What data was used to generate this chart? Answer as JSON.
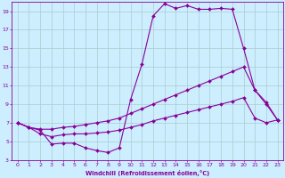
{
  "xlabel": "Windchill (Refroidissement éolien,°C)",
  "background_color": "#cceeff",
  "grid_color": "#aacccc",
  "line_color": "#880099",
  "xlim": [
    -0.5,
    23.5
  ],
  "ylim": [
    3,
    20
  ],
  "xticks": [
    0,
    1,
    2,
    3,
    4,
    5,
    6,
    7,
    8,
    9,
    10,
    11,
    12,
    13,
    14,
    15,
    16,
    17,
    18,
    19,
    20,
    21,
    22,
    23
  ],
  "yticks": [
    3,
    5,
    7,
    9,
    11,
    13,
    15,
    17,
    19
  ],
  "line1_x": [
    0,
    1,
    2,
    3,
    4,
    5,
    6,
    7,
    8,
    9,
    10,
    11,
    12,
    13,
    14,
    15,
    16,
    17,
    18,
    19,
    20,
    21,
    22,
    23
  ],
  "line1_y": [
    7.0,
    6.5,
    6.2,
    4.7,
    4.8,
    4.8,
    4.3,
    4.0,
    3.8,
    4.3,
    9.5,
    13.3,
    18.5,
    19.8,
    19.3,
    19.6,
    19.2,
    19.2,
    19.3,
    19.2,
    15.0,
    10.5,
    9.0,
    7.3
  ],
  "line2_x": [
    0,
    1,
    2,
    3,
    4,
    5,
    6,
    7,
    8,
    9,
    10,
    11,
    12,
    13,
    14,
    15,
    16,
    17,
    18,
    19,
    20,
    21,
    22,
    23
  ],
  "line2_y": [
    7.0,
    6.5,
    6.3,
    6.3,
    6.5,
    6.6,
    6.8,
    7.0,
    7.2,
    7.5,
    8.0,
    8.5,
    9.0,
    9.5,
    10.0,
    10.5,
    11.0,
    11.5,
    12.0,
    12.5,
    13.0,
    10.5,
    9.2,
    7.3
  ],
  "line3_x": [
    0,
    1,
    2,
    3,
    4,
    5,
    6,
    7,
    8,
    9,
    10,
    11,
    12,
    13,
    14,
    15,
    16,
    17,
    18,
    19,
    20,
    21,
    22,
    23
  ],
  "line3_y": [
    7.0,
    6.5,
    5.8,
    5.5,
    5.7,
    5.8,
    5.8,
    5.9,
    6.0,
    6.2,
    6.5,
    6.8,
    7.2,
    7.5,
    7.8,
    8.1,
    8.4,
    8.7,
    9.0,
    9.3,
    9.7,
    7.5,
    7.0,
    7.3
  ]
}
